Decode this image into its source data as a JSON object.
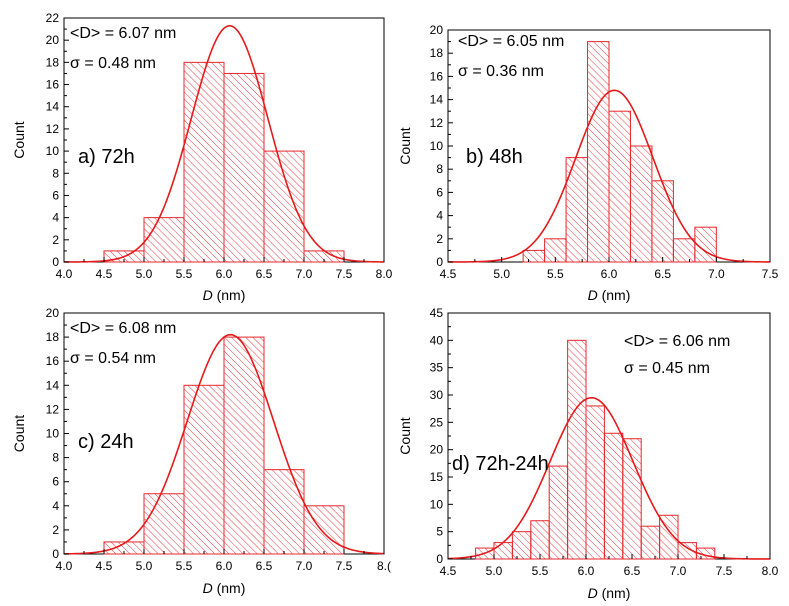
{
  "colors": {
    "bar": "#e8262b",
    "curve": "#e41a1c",
    "axis": "#000000"
  },
  "chart_data": [
    {
      "type": "bar",
      "panel_label": "a) 72h",
      "stat_mean_label": "<D> = 6.07 nm",
      "stat_sigma_label": "σ = 0.48 nm",
      "xlabel_italic": "D",
      "xlabel_unit": " (nm)",
      "ylabel": "Count",
      "xlim": [
        4.0,
        8.0
      ],
      "ylim": [
        0,
        22
      ],
      "xticks": [
        "4.0",
        "4.5",
        "5.0",
        "5.5",
        "6.0",
        "6.5",
        "7.0",
        "7.5",
        "8.0"
      ],
      "yticks": [
        "0",
        "2",
        "4",
        "6",
        "8",
        "10",
        "12",
        "14",
        "16",
        "18",
        "20",
        "22"
      ],
      "bin_width": 0.5,
      "bins": [
        4.5,
        5.0,
        5.5,
        6.0,
        6.5,
        7.0
      ],
      "values": [
        1,
        4,
        18,
        17,
        10,
        1
      ],
      "fit": {
        "type": "gaussian",
        "mean": 6.07,
        "sigma": 0.48,
        "peak": 21.3
      }
    },
    {
      "type": "bar",
      "panel_label": "b) 48h",
      "stat_mean_label": "<D> = 6.05 nm",
      "stat_sigma_label": "σ = 0.36 nm",
      "xlabel_italic": "D",
      "xlabel_unit": " (nm)",
      "ylabel": "Count",
      "xlim": [
        4.5,
        7.5
      ],
      "ylim": [
        0,
        20
      ],
      "xticks": [
        "4.5",
        "5.0",
        "5.5",
        "6.0",
        "6.5",
        "7.0",
        "7.5"
      ],
      "yticks": [
        "0",
        "2",
        "4",
        "6",
        "8",
        "10",
        "12",
        "14",
        "16",
        "18",
        "20"
      ],
      "bin_width": 0.2,
      "bins": [
        5.2,
        5.4,
        5.6,
        5.8,
        6.0,
        6.2,
        6.4,
        6.6,
        6.8
      ],
      "values": [
        1,
        2,
        9,
        19,
        13,
        10,
        7,
        2,
        3
      ],
      "fit": {
        "type": "gaussian",
        "mean": 6.05,
        "sigma": 0.36,
        "peak": 14.8
      }
    },
    {
      "type": "bar",
      "panel_label": "c) 24h",
      "stat_mean_label": "<D> = 6.08 nm",
      "stat_sigma_label": "σ = 0.54 nm",
      "xlabel_italic": "D",
      "xlabel_unit": " (nm)",
      "ylabel": "Count",
      "xlim": [
        4.0,
        8.0
      ],
      "ylim": [
        0,
        20
      ],
      "xticks": [
        "4.0",
        "4.5",
        "5.0",
        "5.5",
        "6.0",
        "6.5",
        "7.0",
        "7.5",
        "8.("
      ],
      "yticks": [
        "0",
        "2",
        "4",
        "6",
        "8",
        "10",
        "12",
        "14",
        "16",
        "18",
        "20"
      ],
      "bin_width": 0.5,
      "bins": [
        4.5,
        5.0,
        5.5,
        6.0,
        6.5,
        7.0
      ],
      "values": [
        1,
        5,
        14,
        18,
        7,
        4
      ],
      "fit": {
        "type": "gaussian",
        "mean": 6.08,
        "sigma": 0.54,
        "peak": 18.2
      }
    },
    {
      "type": "bar",
      "panel_label": "d) 72h-24h",
      "stat_mean_label": "<D> = 6.06 nm",
      "stat_sigma_label": "σ = 0.45 nm",
      "xlabel_italic": "D",
      "xlabel_unit": " (nm)",
      "ylabel": "Count",
      "xlim": [
        4.5,
        8.0
      ],
      "ylim": [
        0,
        45
      ],
      "xticks": [
        "4.5",
        "5.0",
        "5.5",
        "6.0",
        "6.5",
        "7.0",
        "7.5",
        "8.0"
      ],
      "yticks": [
        "0",
        "5",
        "10",
        "15",
        "20",
        "25",
        "30",
        "35",
        "40",
        "45"
      ],
      "bin_width": 0.2,
      "bins": [
        4.8,
        5.0,
        5.2,
        5.4,
        5.6,
        5.8,
        6.0,
        6.2,
        6.4,
        6.6,
        6.8,
        7.0,
        7.2
      ],
      "values": [
        2,
        3,
        5,
        7,
        17,
        40,
        28,
        23,
        22,
        6,
        8,
        3,
        2
      ],
      "fit": {
        "type": "gaussian",
        "mean": 6.06,
        "sigma": 0.45,
        "peak": 29.5
      }
    }
  ]
}
